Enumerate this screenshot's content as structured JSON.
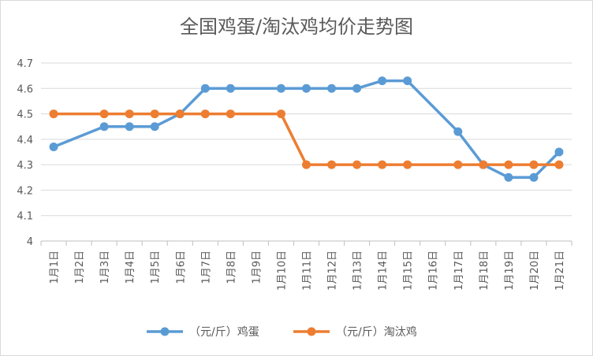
{
  "chart_data": {
    "type": "line",
    "title": "全国鸡蛋/淘汰鸡均价走势图",
    "categories": [
      "1月1日",
      "1月2日",
      "1月3日",
      "1月4日",
      "1月5日",
      "1月6日",
      "1月7日",
      "1月8日",
      "1月9日",
      "1月10日",
      "1月11日",
      "1月12日",
      "1月13日",
      "1月14日",
      "1月15日",
      "1月16日",
      "1月17日",
      "1月18日",
      "1月19日",
      "1月20日",
      "1月21日"
    ],
    "series": [
      {
        "name": "（元/斤）鸡蛋",
        "color": "#5b9bd5",
        "values": [
          4.37,
          null,
          4.45,
          4.45,
          4.45,
          4.5,
          4.6,
          4.6,
          null,
          4.6,
          4.6,
          4.6,
          4.6,
          4.63,
          4.63,
          null,
          4.43,
          4.3,
          4.25,
          4.25,
          4.35
        ]
      },
      {
        "name": "（元/斤）淘汰鸡",
        "color": "#ed7d31",
        "values": [
          4.5,
          null,
          4.5,
          4.5,
          4.5,
          4.5,
          4.5,
          4.5,
          null,
          4.5,
          4.3,
          4.3,
          4.3,
          4.3,
          4.3,
          null,
          4.3,
          4.3,
          4.3,
          4.3,
          4.3
        ]
      }
    ],
    "y_ticks": [
      "4.7",
      "4.6",
      "4.5",
      "4.4",
      "4.3",
      "4.2",
      "4.1",
      "4"
    ],
    "ylim": [
      4,
      4.7
    ],
    "grid": true,
    "legend": "bottom"
  }
}
